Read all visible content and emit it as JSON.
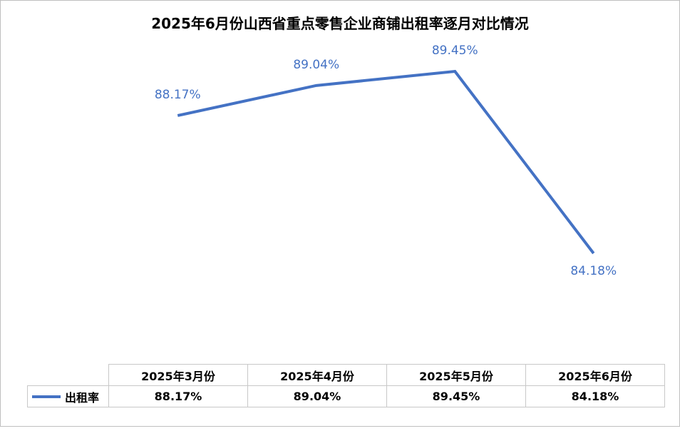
{
  "chart_data": {
    "type": "line",
    "title": "2025年6月份山西省重点零售企业商铺出租率逐月对比情况",
    "categories": [
      "2025年3月份",
      "2025年4月份",
      "2025年5月份",
      "2025年6月份"
    ],
    "series": [
      {
        "name": "出租率",
        "values": [
          88.17,
          89.04,
          89.45,
          84.18
        ],
        "labels": [
          "88.17%",
          "89.04%",
          "89.45%",
          "84.18%"
        ],
        "color": "#4472C4"
      }
    ],
    "ylim": [
      82,
      90.5
    ],
    "legend": "data-table",
    "grid": false
  }
}
